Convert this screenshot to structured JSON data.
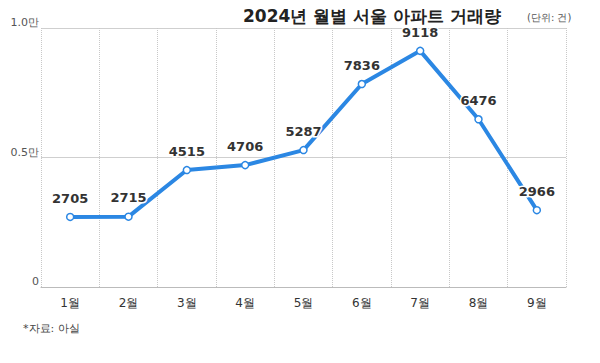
{
  "chart_data": {
    "type": "line",
    "title": "2024년 월별 서울 아파트 거래량",
    "subtitle": "(단위: 건)",
    "annotations": [
      "*자료: 아실"
    ],
    "categories": [
      "1월",
      "2월",
      "3월",
      "4월",
      "5월",
      "6월",
      "7월",
      "8월",
      "9월"
    ],
    "values": [
      2705,
      2715,
      4515,
      4706,
      5287,
      7836,
      9118,
      6476,
      2966
    ],
    "color": "#2b87e3",
    "ylim": [
      0,
      10000
    ],
    "yticks": [
      0,
      {
        "value": 5000,
        "label": "0.5만"
      },
      {
        "value": 10000,
        "label": "1.0만"
      }
    ],
    "grid": true,
    "data_labels": true,
    "marker": "circle"
  }
}
